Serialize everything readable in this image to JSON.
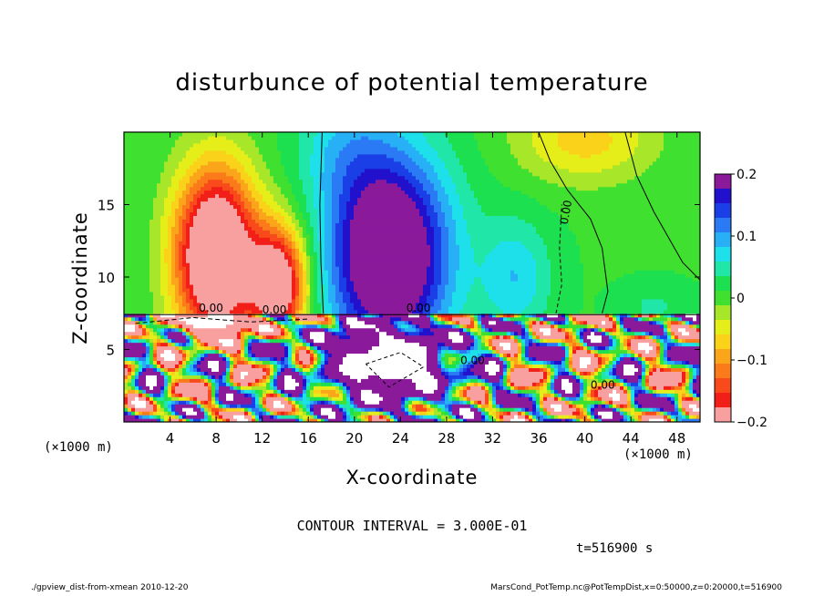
{
  "chart_data": {
    "type": "heatmap",
    "title": "disturbunce of potential temperature",
    "xlabel": "X-coordinate",
    "ylabel": "Z-coordinate",
    "x_unit_left": "(×1000 m)",
    "x_unit_right": "(×1000 m)",
    "xlim": [
      0,
      50
    ],
    "ylim": [
      0,
      20
    ],
    "x_ticks": [
      4,
      8,
      12,
      16,
      20,
      24,
      28,
      32,
      36,
      40,
      44,
      48
    ],
    "y_ticks": [
      5,
      10,
      15
    ],
    "colorbar": {
      "range": [
        -0.2,
        0.2
      ],
      "ticks": [
        {
          "value": 0.2,
          "label": "0.2"
        },
        {
          "value": 0.1,
          "label": "0.1"
        },
        {
          "value": 0,
          "label": "0"
        },
        {
          "value": -0.1,
          "label": "−0.1"
        },
        {
          "value": -0.2,
          "label": "−0.2"
        }
      ],
      "colors": [
        "#8b1a9b",
        "#2211cc",
        "#1a3fe6",
        "#2a7af5",
        "#27b0f5",
        "#1ee0ea",
        "#20e6a8",
        "#1ce050",
        "#40e030",
        "#a8e62a",
        "#e6ee1a",
        "#fbd21a",
        "#fba51a",
        "#fb7a1a",
        "#f84a1a",
        "#f21e18",
        "#f8a0a0"
      ]
    },
    "contour_labels": [
      "0.00",
      "0.00",
      "0.00",
      "0.00",
      "0.00",
      "0.00"
    ],
    "contour_interval": "CONTOUR INTERVAL = 3.000E-01",
    "time": "t=516900 s"
  },
  "footer": {
    "left": "./gpview_dist-from-xmean  2010-12-20",
    "right": "MarsCond_PotTemp.nc@PotTempDist,x=0:50000,z=0:20000,t=516900"
  }
}
